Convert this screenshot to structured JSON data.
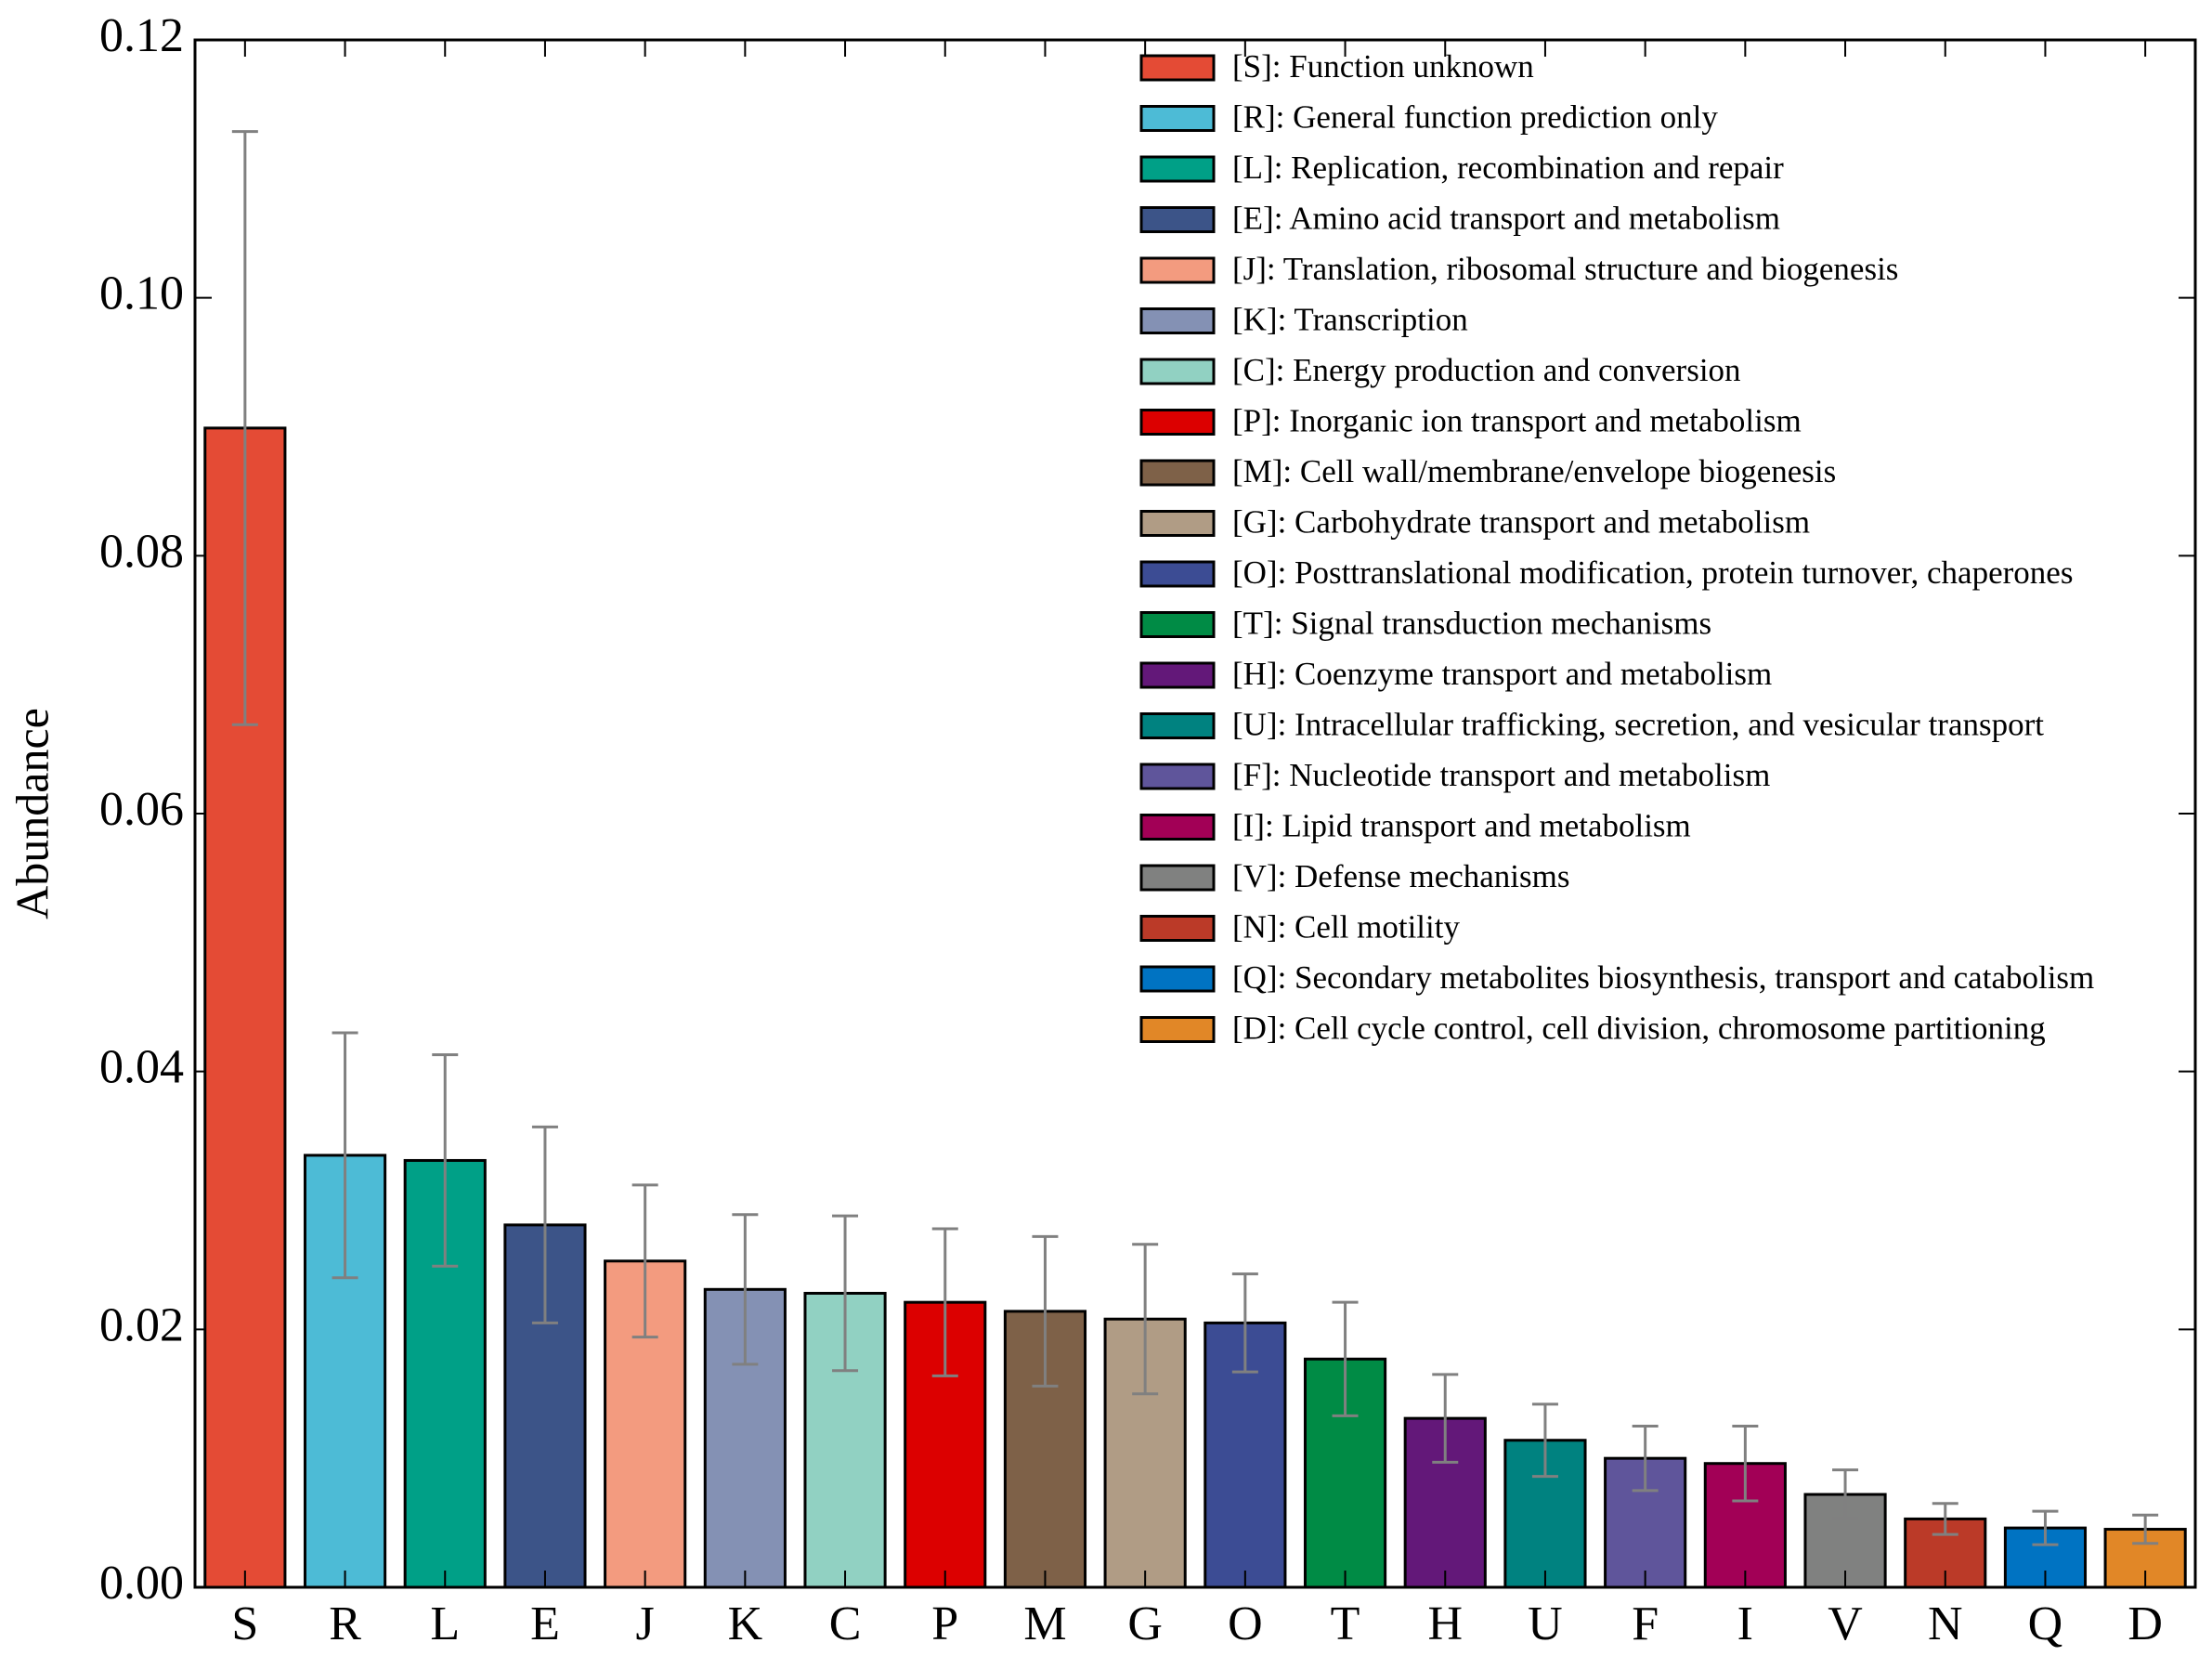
{
  "chart_data": {
    "type": "bar",
    "ylabel": "Abundance",
    "categories": [
      "S",
      "R",
      "L",
      "E",
      "J",
      "K",
      "C",
      "P",
      "M",
      "G",
      "O",
      "T",
      "H",
      "U",
      "F",
      "I",
      "V",
      "N",
      "Q",
      "D"
    ],
    "values": [
      0.0899,
      0.0335,
      0.0331,
      0.0281,
      0.0253,
      0.0231,
      0.0228,
      0.0221,
      0.0214,
      0.0208,
      0.0205,
      0.0177,
      0.0131,
      0.0114,
      0.01,
      0.0096,
      0.0072,
      0.0053,
      0.0046,
      0.0045
    ],
    "errors": [
      0.023,
      0.0095,
      0.0082,
      0.0076,
      0.0059,
      0.0058,
      0.006,
      0.0057,
      0.0058,
      0.0058,
      0.0038,
      0.0044,
      0.0034,
      0.0028,
      0.0025,
      0.0029,
      0.0019,
      0.0012,
      0.0013,
      0.0011
    ],
    "colors": [
      "#e44b35",
      "#4dbbd6",
      "#00a087",
      "#3c5488",
      "#f39b7f",
      "#8491b4",
      "#91d1c2",
      "#dc0000",
      "#7e6148",
      "#b09c85",
      "#3c4c94",
      "#008b45",
      "#631879",
      "#008280",
      "#5f559b",
      "#a20056",
      "#808180",
      "#bb3a28",
      "#0073c2",
      "#e18727"
    ],
    "legend": [
      "[S]: Function unknown",
      "[R]: General function prediction only",
      "[L]: Replication, recombination and repair",
      "[E]: Amino acid transport and metabolism",
      "[J]: Translation, ribosomal structure and biogenesis",
      "[K]: Transcription",
      "[C]: Energy production and conversion",
      "[P]: Inorganic ion transport and metabolism",
      "[M]: Cell wall/membrane/envelope biogenesis",
      "[G]: Carbohydrate transport and metabolism",
      "[O]: Posttranslational modification, protein turnover, chaperones",
      "[T]: Signal transduction mechanisms",
      "[H]: Coenzyme transport and metabolism",
      "[U]: Intracellular trafficking, secretion, and vesicular transport",
      "[F]: Nucleotide transport and metabolism",
      "[I]: Lipid transport and metabolism",
      "[V]: Defense mechanisms",
      "[N]: Cell motility",
      "[Q]: Secondary metabolites biosynthesis, transport and catabolism",
      "[D]: Cell cycle control, cell division, chromosome partitioning"
    ],
    "error_color": "#808080",
    "ylim": [
      0,
      0.12
    ],
    "yticks": [
      {
        "value": 0,
        "label": "0.00"
      },
      {
        "value": 0.02,
        "label": "0.02"
      },
      {
        "value": 0.04,
        "label": "0.04"
      },
      {
        "value": 0.06,
        "label": "0.06"
      },
      {
        "value": 0.08,
        "label": "0.08"
      },
      {
        "value": 0.1,
        "label": "0.10"
      },
      {
        "value": 0.12,
        "label": "0.12"
      }
    ],
    "grid": false
  }
}
